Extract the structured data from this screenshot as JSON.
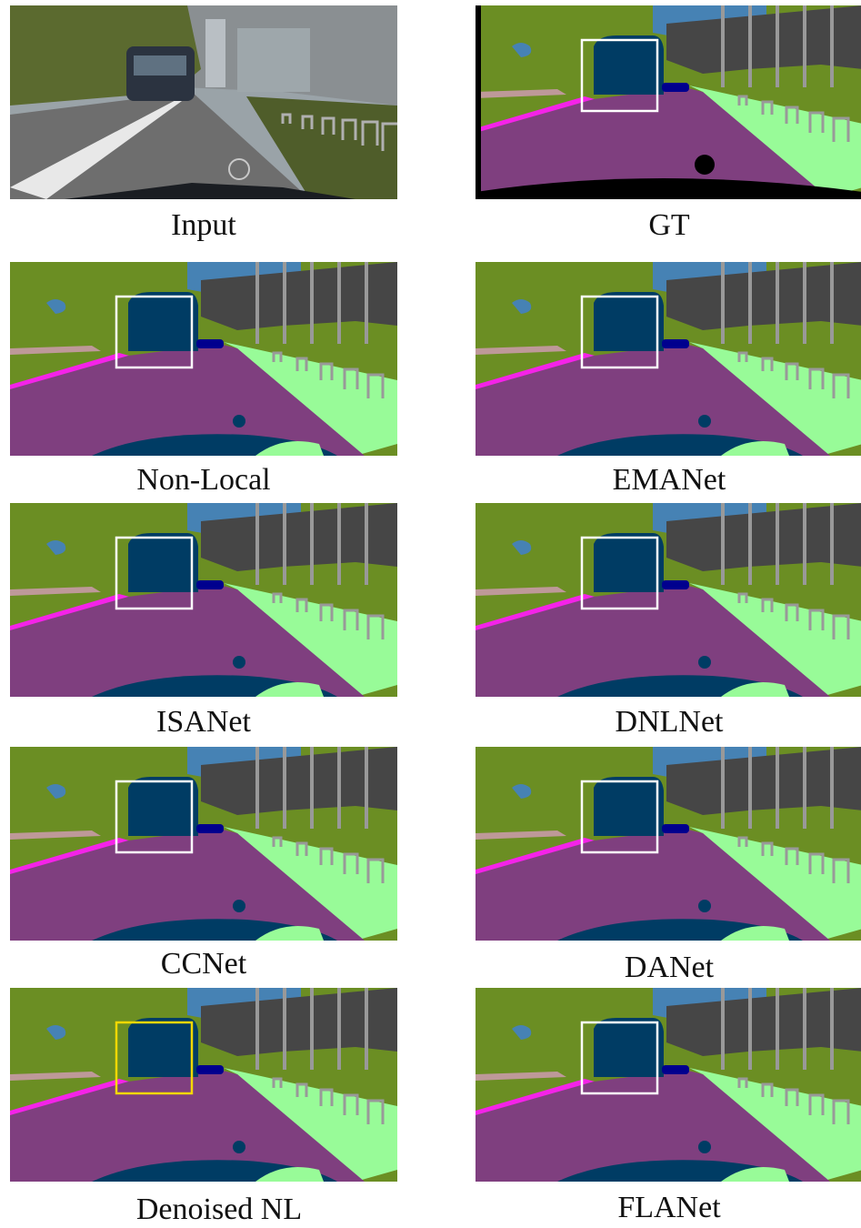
{
  "figure": {
    "panels": [
      {
        "id": "input",
        "label": "Input",
        "kind": "photo",
        "box": "none"
      },
      {
        "id": "gt",
        "label": "GT",
        "kind": "gt",
        "box": "white"
      },
      {
        "id": "nonlocal",
        "label": "Non-Local",
        "kind": "seg",
        "box": "white"
      },
      {
        "id": "emanet",
        "label": "EMANet",
        "kind": "seg",
        "box": "white"
      },
      {
        "id": "isanet",
        "label": "ISANet",
        "kind": "seg",
        "box": "white"
      },
      {
        "id": "dnlnet",
        "label": "DNLNet",
        "kind": "seg",
        "box": "white"
      },
      {
        "id": "ccnet",
        "label": "CCNet",
        "kind": "seg",
        "box": "white"
      },
      {
        "id": "danet",
        "label": "DANet",
        "kind": "seg",
        "box": "white"
      },
      {
        "id": "denoised",
        "label": "Denoised NL",
        "kind": "seg",
        "box": "yellow"
      },
      {
        "id": "flanet",
        "label": "FLANet",
        "kind": "seg",
        "box": "white"
      }
    ],
    "colors": {
      "road": "#7f3f7f",
      "vegetation": "#6b8e23",
      "terrain": "#98fb98",
      "building": "#464646",
      "sky": "#4682b4",
      "bus": "#003c64",
      "car": "#00008e",
      "sidewalk": "#f423e8",
      "pole": "#999999",
      "fence": "#be9999",
      "void": "#000000",
      "box_white": "#ffffff",
      "box_yellow": "#f5d800"
    }
  }
}
